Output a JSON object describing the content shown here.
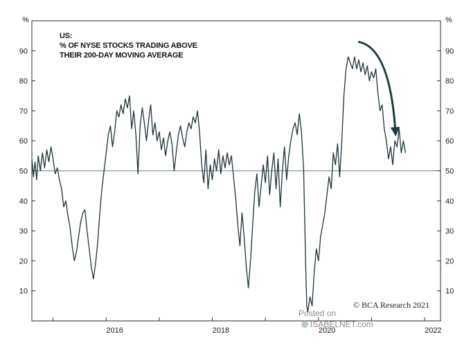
{
  "chart_data": {
    "type": "line",
    "title_lines": [
      "US:",
      "% OF NYSE STOCKS TRADING ABOVE",
      "THEIR 200-DAY MOVING AVERAGE"
    ],
    "ylabel_left": "%",
    "ylabel_right": "%",
    "ylim": [
      0,
      100
    ],
    "yticks": [
      10,
      20,
      30,
      40,
      50,
      60,
      70,
      80,
      90
    ],
    "xlim": [
      2014.6,
      2022.3
    ],
    "xticks": [
      {
        "label": "2016",
        "x": 2016
      },
      {
        "label": "2018",
        "x": 2018
      },
      {
        "label": "2020",
        "x": 2020
      },
      {
        "label": "2022",
        "x": 2022
      }
    ],
    "reference_line": 50,
    "annotation_arrow": {
      "from": [
        2020.75,
        93
      ],
      "to": [
        2021.45,
        63
      ]
    },
    "credit": "© BCA Research 2021",
    "watermark": [
      "Posted on",
      "ISABELNET.com"
    ],
    "series": [
      {
        "name": "% of NYSE stocks above 200-day MA",
        "points": [
          [
            2014.6,
            54
          ],
          [
            2014.63,
            48
          ],
          [
            2014.66,
            53
          ],
          [
            2014.69,
            47
          ],
          [
            2014.72,
            55
          ],
          [
            2014.76,
            50
          ],
          [
            2014.8,
            56
          ],
          [
            2014.84,
            51
          ],
          [
            2014.88,
            57
          ],
          [
            2014.92,
            53
          ],
          [
            2014.96,
            58
          ],
          [
            2015.0,
            54
          ],
          [
            2015.04,
            49
          ],
          [
            2015.08,
            51
          ],
          [
            2015.12,
            47
          ],
          [
            2015.16,
            44
          ],
          [
            2015.2,
            38
          ],
          [
            2015.24,
            40
          ],
          [
            2015.28,
            35
          ],
          [
            2015.32,
            31
          ],
          [
            2015.36,
            25
          ],
          [
            2015.4,
            20
          ],
          [
            2015.44,
            23
          ],
          [
            2015.48,
            28
          ],
          [
            2015.52,
            33
          ],
          [
            2015.56,
            36
          ],
          [
            2015.6,
            37
          ],
          [
            2015.64,
            30
          ],
          [
            2015.68,
            24
          ],
          [
            2015.72,
            18
          ],
          [
            2015.76,
            14
          ],
          [
            2015.8,
            19
          ],
          [
            2015.84,
            26
          ],
          [
            2015.88,
            36
          ],
          [
            2015.92,
            44
          ],
          [
            2015.96,
            50
          ],
          [
            2016.0,
            56
          ],
          [
            2016.04,
            62
          ],
          [
            2016.08,
            65
          ],
          [
            2016.12,
            58
          ],
          [
            2016.16,
            63
          ],
          [
            2016.2,
            70
          ],
          [
            2016.24,
            68
          ],
          [
            2016.28,
            72
          ],
          [
            2016.32,
            69
          ],
          [
            2016.36,
            74
          ],
          [
            2016.4,
            71
          ],
          [
            2016.44,
            75
          ],
          [
            2016.48,
            64
          ],
          [
            2016.52,
            70
          ],
          [
            2016.56,
            62
          ],
          [
            2016.6,
            49
          ],
          [
            2016.64,
            65
          ],
          [
            2016.68,
            71
          ],
          [
            2016.72,
            66
          ],
          [
            2016.76,
            60
          ],
          [
            2016.8,
            67
          ],
          [
            2016.84,
            72
          ],
          [
            2016.88,
            62
          ],
          [
            2016.92,
            66
          ],
          [
            2016.96,
            60
          ],
          [
            2017.0,
            63
          ],
          [
            2017.04,
            57
          ],
          [
            2017.08,
            61
          ],
          [
            2017.12,
            55
          ],
          [
            2017.16,
            60
          ],
          [
            2017.2,
            63
          ],
          [
            2017.24,
            59
          ],
          [
            2017.28,
            50
          ],
          [
            2017.32,
            56
          ],
          [
            2017.36,
            62
          ],
          [
            2017.4,
            65
          ],
          [
            2017.44,
            61
          ],
          [
            2017.48,
            58
          ],
          [
            2017.52,
            63
          ],
          [
            2017.56,
            66
          ],
          [
            2017.6,
            64
          ],
          [
            2017.64,
            68
          ],
          [
            2017.68,
            66
          ],
          [
            2017.72,
            70
          ],
          [
            2017.76,
            63
          ],
          [
            2017.8,
            52
          ],
          [
            2017.84,
            46
          ],
          [
            2017.88,
            57
          ],
          [
            2017.92,
            44
          ],
          [
            2017.96,
            52
          ],
          [
            2018.0,
            47
          ],
          [
            2018.04,
            54
          ],
          [
            2018.08,
            50
          ],
          [
            2018.12,
            57
          ],
          [
            2018.16,
            49
          ],
          [
            2018.2,
            55
          ],
          [
            2018.24,
            51
          ],
          [
            2018.28,
            56
          ],
          [
            2018.32,
            52
          ],
          [
            2018.36,
            55
          ],
          [
            2018.4,
            48
          ],
          [
            2018.44,
            41
          ],
          [
            2018.48,
            32
          ],
          [
            2018.52,
            25
          ],
          [
            2018.56,
            36
          ],
          [
            2018.6,
            28
          ],
          [
            2018.64,
            18
          ],
          [
            2018.68,
            11
          ],
          [
            2018.72,
            20
          ],
          [
            2018.76,
            32
          ],
          [
            2018.8,
            43
          ],
          [
            2018.84,
            49
          ],
          [
            2018.88,
            38
          ],
          [
            2018.92,
            45
          ],
          [
            2018.96,
            52
          ],
          [
            2019.0,
            46
          ],
          [
            2019.04,
            55
          ],
          [
            2019.08,
            42
          ],
          [
            2019.12,
            50
          ],
          [
            2019.16,
            56
          ],
          [
            2019.2,
            44
          ],
          [
            2019.24,
            54
          ],
          [
            2019.28,
            38
          ],
          [
            2019.32,
            50
          ],
          [
            2019.36,
            58
          ],
          [
            2019.4,
            47
          ],
          [
            2019.44,
            55
          ],
          [
            2019.48,
            60
          ],
          [
            2019.52,
            64
          ],
          [
            2019.56,
            66
          ],
          [
            2019.6,
            62
          ],
          [
            2019.64,
            69
          ],
          [
            2019.68,
            63
          ],
          [
            2019.72,
            51
          ],
          [
            2019.76,
            18
          ],
          [
            2019.78,
            5
          ],
          [
            2019.8,
            3
          ],
          [
            2019.84,
            8
          ],
          [
            2019.88,
            5
          ],
          [
            2019.92,
            16
          ],
          [
            2019.96,
            24
          ],
          [
            2020.0,
            20
          ],
          [
            2020.04,
            28
          ],
          [
            2020.08,
            32
          ],
          [
            2020.12,
            36
          ],
          [
            2020.16,
            42
          ],
          [
            2020.2,
            48
          ],
          [
            2020.24,
            44
          ],
          [
            2020.28,
            56
          ],
          [
            2020.32,
            52
          ],
          [
            2020.36,
            59
          ],
          [
            2020.4,
            48
          ],
          [
            2020.44,
            60
          ],
          [
            2020.48,
            75
          ],
          [
            2020.52,
            84
          ],
          [
            2020.56,
            88
          ],
          [
            2020.6,
            86
          ],
          [
            2020.64,
            84
          ],
          [
            2020.68,
            88
          ],
          [
            2020.72,
            84
          ],
          [
            2020.76,
            87
          ],
          [
            2020.8,
            83
          ],
          [
            2020.84,
            86
          ],
          [
            2020.88,
            82
          ],
          [
            2020.92,
            85
          ],
          [
            2020.96,
            80
          ],
          [
            2021.0,
            83
          ],
          [
            2021.04,
            81
          ],
          [
            2021.08,
            84
          ],
          [
            2021.12,
            76
          ],
          [
            2021.16,
            70
          ],
          [
            2021.2,
            72
          ],
          [
            2021.24,
            64
          ],
          [
            2021.28,
            60
          ],
          [
            2021.32,
            54
          ],
          [
            2021.36,
            58
          ],
          [
            2021.4,
            52
          ],
          [
            2021.44,
            60
          ],
          [
            2021.48,
            58
          ],
          [
            2021.52,
            64
          ],
          [
            2021.56,
            56
          ],
          [
            2021.6,
            60
          ],
          [
            2021.64,
            56
          ]
        ]
      }
    ]
  }
}
